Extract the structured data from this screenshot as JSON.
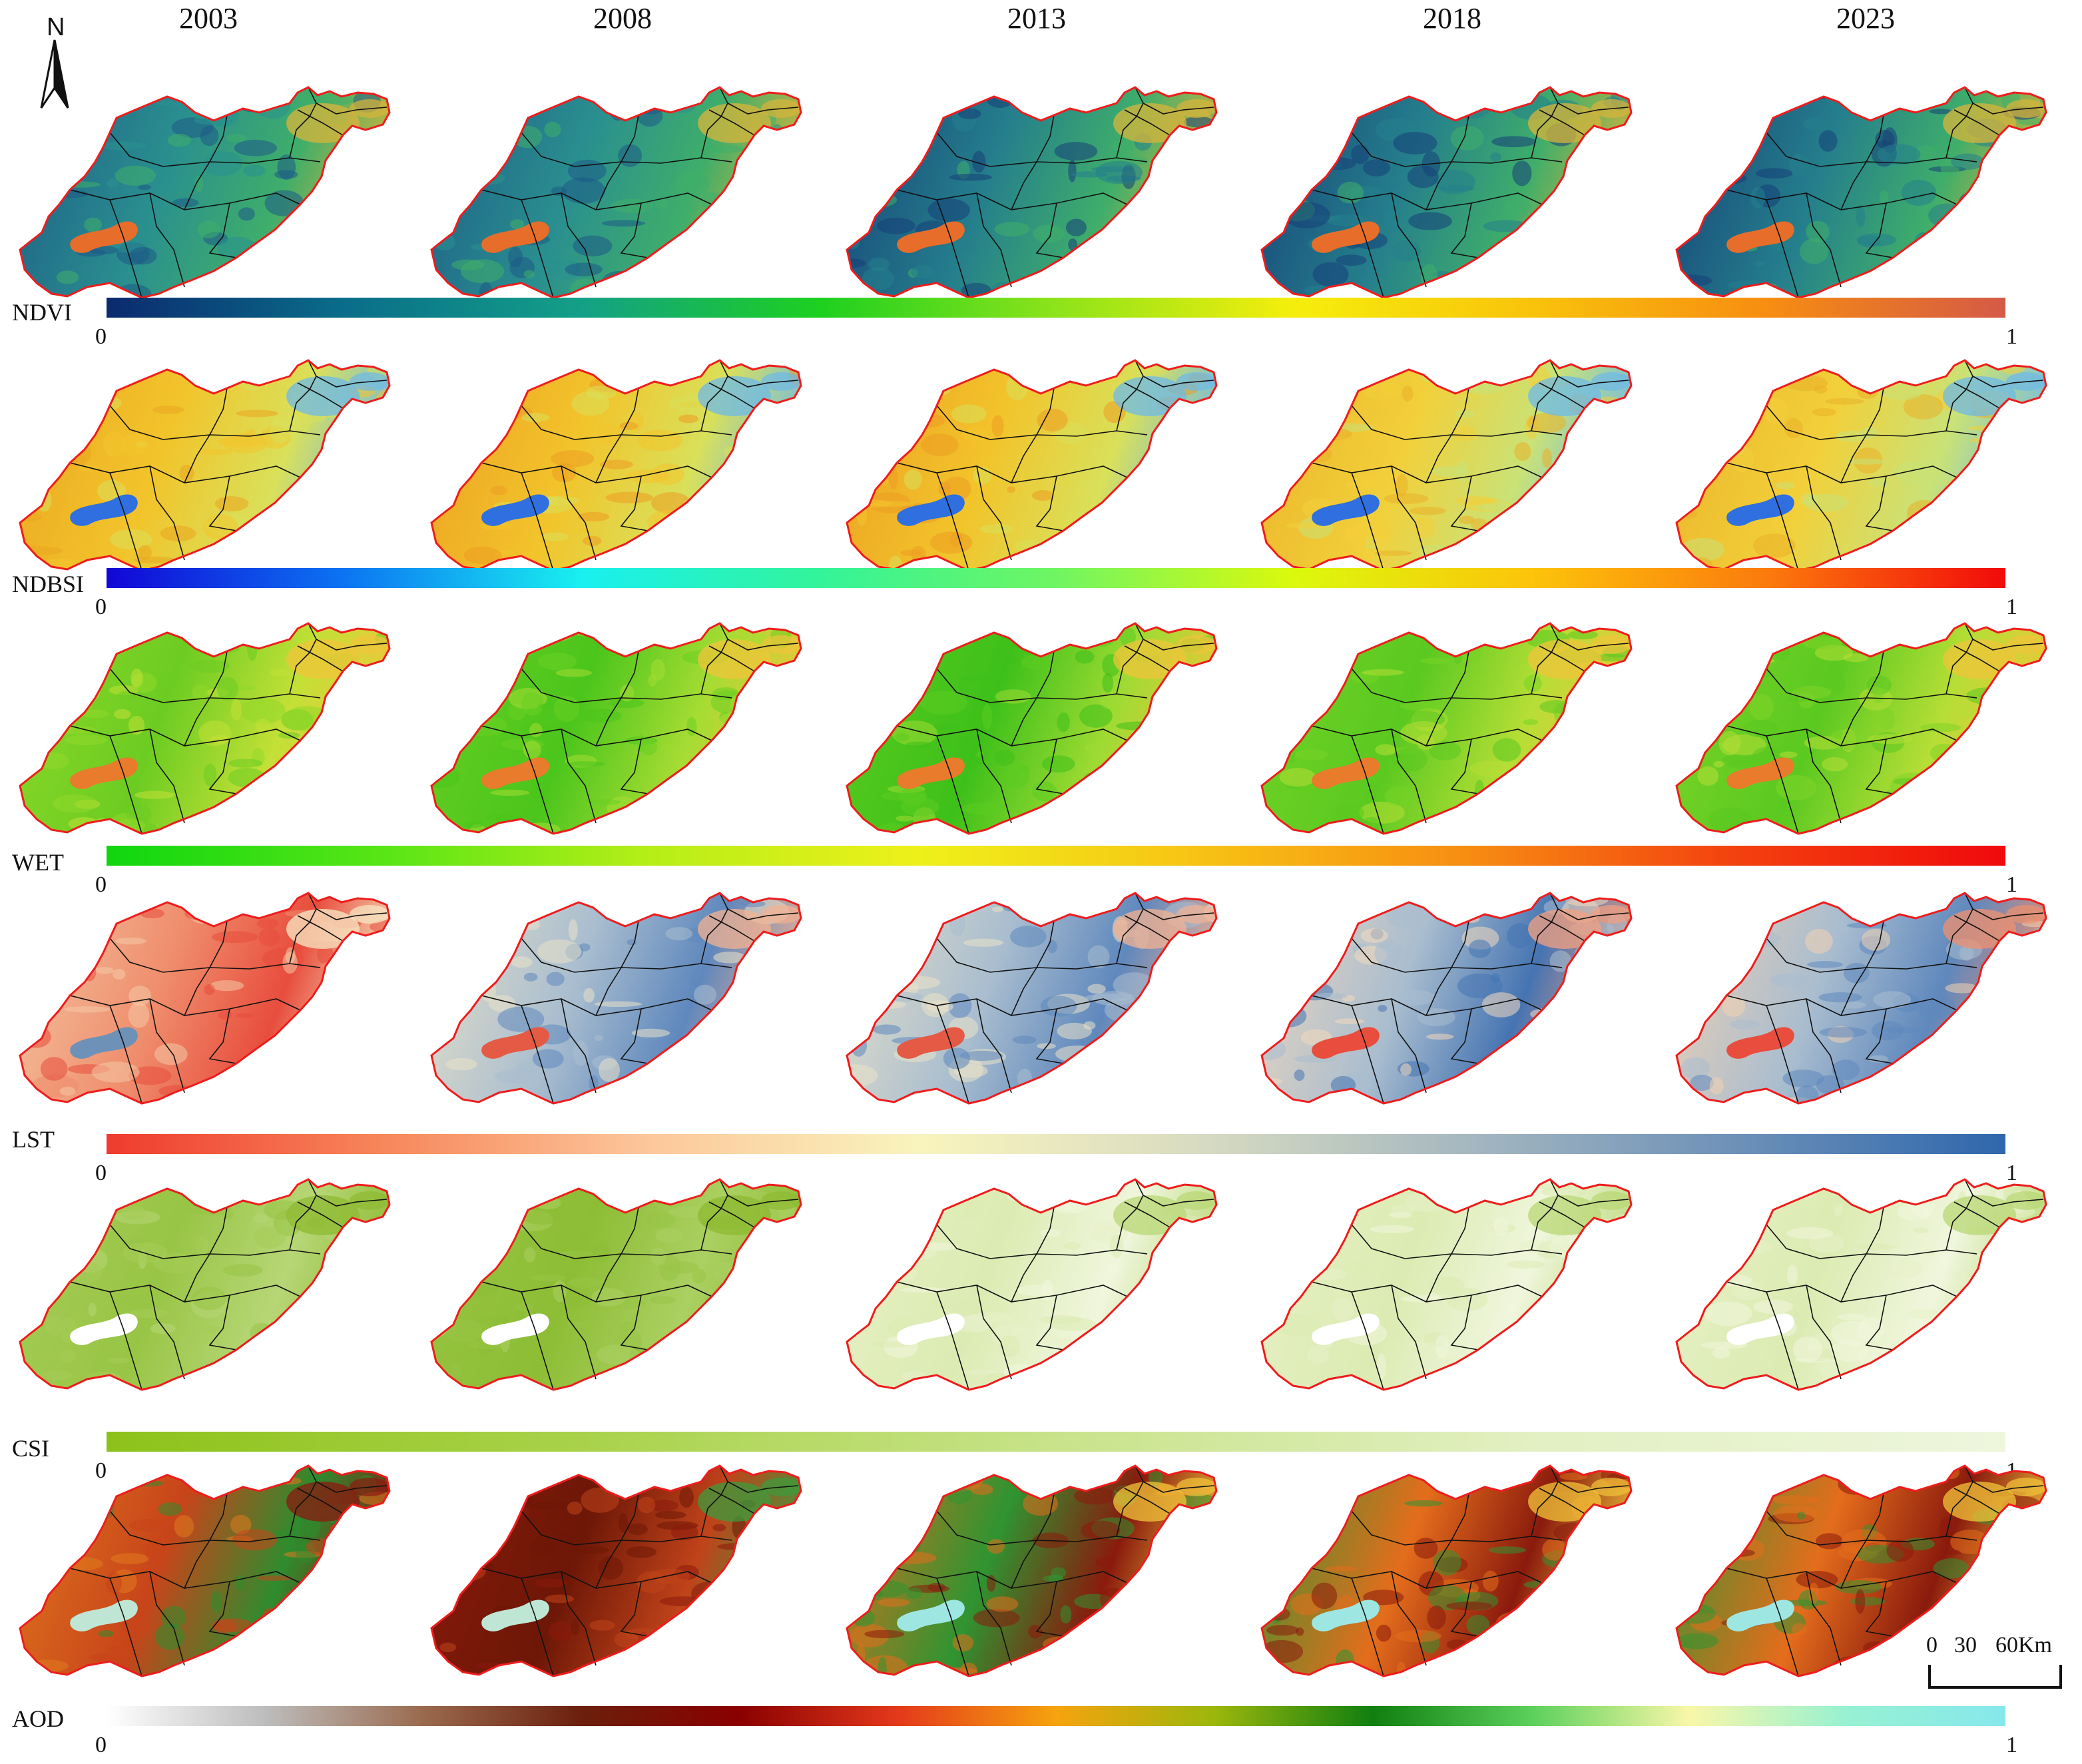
{
  "years": [
    "2003",
    "2008",
    "2013",
    "2018",
    "2023"
  ],
  "north_arrow": {
    "label": "N"
  },
  "scale_bar": {
    "ticks": [
      "0",
      "30",
      "60"
    ],
    "unit": "Km"
  },
  "colorbar_ticks": {
    "min": "0",
    "max": "1"
  },
  "rows": [
    {
      "index": "NDVI",
      "colorbar": [
        "#0b2a6e",
        "#0a6d8a",
        "#13a087",
        "#1dd020",
        "#8de31a",
        "#f5ee0c",
        "#f9c30b",
        "#f78d11",
        "#d45a46"
      ],
      "map_colors": [
        [
          "#1d5a86",
          "#2a8f8f",
          "#3fae6a",
          "#d8b43b",
          "#e76d2a"
        ],
        [
          "#1d5a86",
          "#2a8f8f",
          "#3fae6a",
          "#d8b43b",
          "#e76d2a"
        ],
        [
          "#163f78",
          "#257f8c",
          "#3fae6a",
          "#d8b43b",
          "#e76d2a"
        ],
        [
          "#163f78",
          "#257f8c",
          "#3fae6a",
          "#d8b43b",
          "#e76d2a"
        ],
        [
          "#163f78",
          "#257f8c",
          "#3fae6a",
          "#d8b43b",
          "#e76d2a"
        ]
      ]
    },
    {
      "index": "NDBSI",
      "colorbar": [
        "#1206d6",
        "#0c74f2",
        "#19f0f0",
        "#33f49a",
        "#6ff562",
        "#dbf90c",
        "#fcc40a",
        "#fb7a0d",
        "#f20a0a"
      ],
      "map_colors": [
        [
          "#eaa521",
          "#f2c42b",
          "#d9e05a",
          "#6db9e8",
          "#2f6fe0"
        ],
        [
          "#ec9d22",
          "#f2c42b",
          "#d9e05a",
          "#6db9e8",
          "#2f6fe0"
        ],
        [
          "#ec9d22",
          "#f2c42b",
          "#d9e05a",
          "#6db9e8",
          "#2f6fe0"
        ],
        [
          "#eab12a",
          "#f2d03a",
          "#c9e277",
          "#6db9e8",
          "#2f6fe0"
        ],
        [
          "#eab12a",
          "#f2d03a",
          "#c9e277",
          "#6db9e8",
          "#2f6fe0"
        ]
      ]
    },
    {
      "index": "WET",
      "colorbar": [
        "#0fd60f",
        "#57e516",
        "#b6ee17",
        "#eef01a",
        "#f7c414",
        "#f78e12",
        "#f3410f",
        "#f0090b"
      ],
      "map_colors": [
        [
          "#8fd82a",
          "#6ccc22",
          "#c3e037",
          "#f0c43a",
          "#e87b2c"
        ],
        [
          "#69cf23",
          "#4bc51c",
          "#a6dc33",
          "#f0c43a",
          "#e87b2c"
        ],
        [
          "#5bcc20",
          "#3ec01a",
          "#9fdb33",
          "#f0c43a",
          "#e87b2c"
        ],
        [
          "#76d326",
          "#5ac920",
          "#b6de36",
          "#f0c43a",
          "#e87b2c"
        ],
        [
          "#7fd428",
          "#5ac920",
          "#b6de36",
          "#f0c43a",
          "#e87b2c"
        ]
      ]
    },
    {
      "index": "LST",
      "colorbar": [
        "#ef3b2e",
        "#f7855a",
        "#fcc79b",
        "#f9f4bd",
        "#d9dcc1",
        "#a6b8c0",
        "#6e91b8",
        "#2e67ac"
      ],
      "map_colors": [
        [
          "#f4c9a6",
          "#ef8d6c",
          "#e84d3d",
          "#f7eac6",
          "#6e91b8"
        ],
        [
          "#e9e2c8",
          "#a9bdcf",
          "#5f88bd",
          "#f3b191",
          "#e45a45"
        ],
        [
          "#e9e2c8",
          "#a9bdcf",
          "#5f88bd",
          "#f3b191",
          "#e45a45"
        ],
        [
          "#f2d8bd",
          "#a9bdcf",
          "#4574b2",
          "#f3a080",
          "#e84d3d"
        ],
        [
          "#f2d1b2",
          "#a9bdcf",
          "#5f88bd",
          "#f0906e",
          "#e84d3d"
        ]
      ]
    },
    {
      "index": "CSI",
      "colorbar": [
        "#8dc21a",
        "#a9d24a",
        "#c8e38a",
        "#e2f0c2",
        "#eef6dd"
      ],
      "map_colors": [
        [
          "#a6cc58",
          "#98c545",
          "#b7d676",
          "#8dba32",
          "#ffffff"
        ],
        [
          "#98c545",
          "#8dbd35",
          "#abd062",
          "#8dba32",
          "#ffffff"
        ],
        [
          "#e7f1c8",
          "#dcebb2",
          "#f0f6dd",
          "#b8d774",
          "#ffffff"
        ],
        [
          "#e7f1c8",
          "#dcebb2",
          "#f0f6dd",
          "#b8d774",
          "#ffffff"
        ],
        [
          "#e7f1c8",
          "#dcebb2",
          "#f0f6dd",
          "#b8d774",
          "#ffffff"
        ]
      ]
    },
    {
      "index": "AOD",
      "colorbar": [
        "#ffffff",
        "#bdbdbd",
        "#9a6a4e",
        "#6b1f0c",
        "#8a0000",
        "#e4391b",
        "#f6a30e",
        "#9cb70c",
        "#107f10",
        "#5ad05a",
        "#f9f7a8",
        "#97f1d2",
        "#86e8ec"
      ],
      "map_colors": [
        [
          "#e07a1e",
          "#c8441a",
          "#2e8c2e",
          "#8a1a10",
          "#bfe6d4"
        ],
        [
          "#8a1a0d",
          "#6d1707",
          "#c0431a",
          "#3c9b3c",
          "#bfe6d4"
        ],
        [
          "#e46d1c",
          "#2f9431",
          "#8a1a0d",
          "#f2c43a",
          "#9ee6e2"
        ],
        [
          "#2f9431",
          "#e46d1c",
          "#8a1a0d",
          "#f2c43a",
          "#9ee6e2"
        ],
        [
          "#2f9431",
          "#e46d1c",
          "#8a1a0d",
          "#f2c43a",
          "#9ee6e2"
        ]
      ]
    }
  ]
}
